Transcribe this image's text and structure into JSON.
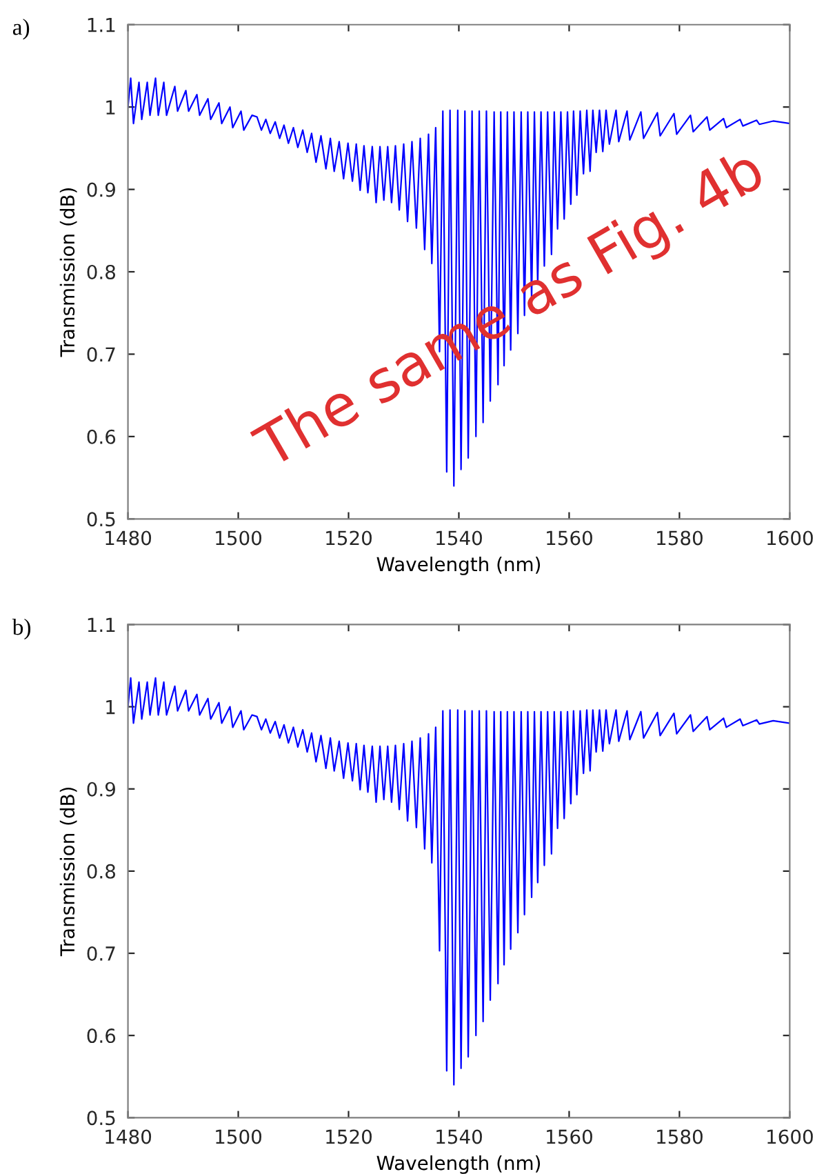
{
  "chart_data": [
    {
      "type": "line",
      "xlabel": "Wavelength (nm)",
      "ylabel": "Transmission (dB)",
      "annotations": [
        "a)",
        "The same as Fig. 4b"
      ],
      "xlim": [
        1480,
        1600
      ],
      "ylim": [
        0.5,
        1.1
      ],
      "xticks": [
        1480,
        1500,
        1520,
        1540,
        1560,
        1580,
        1600
      ],
      "yticks": [
        0.5,
        0.6,
        0.7,
        0.8,
        0.9,
        1,
        1.1
      ],
      "grid": false,
      "marker": "none",
      "line_style": "solid",
      "series": [
        {
          "color": "#0000ff",
          "x": [
            1480,
            1480.5,
            1481,
            1482,
            1482.5,
            1483.5,
            1484,
            1485,
            1485.5,
            1486.5,
            1487,
            1488.5,
            1489,
            1490.5,
            1491,
            1492.5,
            1493,
            1494.5,
            1495,
            1496.5,
            1497,
            1498.5,
            1499,
            1500.5,
            1501,
            1502.5,
            1503.4,
            1504.2,
            1505.0,
            1505.8,
            1506.7,
            1507.5,
            1508.3,
            1509.1,
            1510.0,
            1510.8,
            1511.7,
            1512.5,
            1513.3,
            1514.1,
            1515.0,
            1515.9,
            1516.7,
            1517.4,
            1518.3,
            1519.1,
            1519.9,
            1520.7,
            1521.4,
            1522.1,
            1522.8,
            1523.5,
            1524.3,
            1525.0,
            1525.7,
            1526.4,
            1527.1,
            1527.8,
            1528.5,
            1529.2,
            1530.0,
            1530.7,
            1531.5,
            1532.3,
            1533.0,
            1533.8,
            1534.5,
            1535.1,
            1535.8,
            1536.5,
            1537.1,
            1537.8,
            1538.4,
            1539.1,
            1539.8,
            1540.4,
            1541.1,
            1541.7,
            1542.4,
            1543.1,
            1543.7,
            1544.4,
            1545.0,
            1545.7,
            1546.4,
            1547.1,
            1547.6,
            1548.2,
            1548.8,
            1549.4,
            1550.0,
            1550.7,
            1551.3,
            1551.9,
            1552.5,
            1553.2,
            1553.7,
            1554.3,
            1554.9,
            1555.5,
            1556.1,
            1556.8,
            1557.3,
            1557.9,
            1558.5,
            1559.1,
            1559.7,
            1560.3,
            1560.8,
            1561.4,
            1562.0,
            1562.6,
            1563.2,
            1563.8,
            1564.3,
            1564.9,
            1565.5,
            1566.1,
            1566.7,
            1567.3,
            1568.5,
            1569.0,
            1570.5,
            1571,
            1573,
            1573.5,
            1576,
            1576.5,
            1579,
            1579.5,
            1582,
            1582.5,
            1585,
            1585.5,
            1588,
            1588.5,
            1591,
            1591.5,
            1594,
            1594.5,
            1597,
            1600
          ],
          "values": [
            1.0,
            1.035,
            0.98,
            1.03,
            0.985,
            1.03,
            0.99,
            1.035,
            0.99,
            1.03,
            0.99,
            1.025,
            0.995,
            1.02,
            0.995,
            1.015,
            0.99,
            1.01,
            0.985,
            1.005,
            0.98,
            1.0,
            0.975,
            0.995,
            0.972,
            0.99,
            0.988,
            0.972,
            0.985,
            0.968,
            0.982,
            0.962,
            0.978,
            0.956,
            0.975,
            0.951,
            0.972,
            0.945,
            0.968,
            0.933,
            0.965,
            0.925,
            0.962,
            0.922,
            0.958,
            0.913,
            0.956,
            0.91,
            0.955,
            0.899,
            0.953,
            0.896,
            0.952,
            0.884,
            0.952,
            0.887,
            0.952,
            0.884,
            0.953,
            0.875,
            0.955,
            0.861,
            0.958,
            0.853,
            0.962,
            0.827,
            0.967,
            0.81,
            0.975,
            0.703,
            0.995,
            0.557,
            0.996,
            0.54,
            0.996,
            0.56,
            0.995,
            0.574,
            0.995,
            0.6,
            0.995,
            0.617,
            0.995,
            0.643,
            0.994,
            0.663,
            0.994,
            0.686,
            0.994,
            0.705,
            0.994,
            0.725,
            0.994,
            0.747,
            0.994,
            0.768,
            0.994,
            0.786,
            0.994,
            0.807,
            0.994,
            0.821,
            0.994,
            0.852,
            0.994,
            0.864,
            0.994,
            0.882,
            0.995,
            0.893,
            0.995,
            0.919,
            0.996,
            0.922,
            0.996,
            0.945,
            0.996,
            0.946,
            0.996,
            0.955,
            0.996,
            0.958,
            0.995,
            0.96,
            0.994,
            0.962,
            0.993,
            0.965,
            0.992,
            0.967,
            0.99,
            0.97,
            0.988,
            0.972,
            0.986,
            0.975,
            0.985,
            0.977,
            0.984,
            0.979,
            0.983,
            0.98
          ]
        }
      ]
    },
    {
      "type": "line",
      "xlabel": "Wavelength (nm)",
      "ylabel": "Transmission (dB)",
      "annotations": [
        "b)"
      ],
      "xlim": [
        1480,
        1600
      ],
      "ylim": [
        0.5,
        1.1
      ],
      "xticks": [
        1480,
        1500,
        1520,
        1540,
        1560,
        1580,
        1600
      ],
      "yticks": [
        0.5,
        0.6,
        0.7,
        0.8,
        0.9,
        1,
        1.1
      ],
      "grid": false,
      "marker": "none",
      "line_style": "solid",
      "series": [
        {
          "color": "#0000ff",
          "x": [
            1480,
            1480.5,
            1481,
            1482,
            1482.5,
            1483.5,
            1484,
            1485,
            1485.5,
            1486.5,
            1487,
            1488.5,
            1489,
            1490.5,
            1491,
            1492.5,
            1493,
            1494.5,
            1495,
            1496.5,
            1497,
            1498.5,
            1499,
            1500.5,
            1501,
            1502.5,
            1503.4,
            1504.2,
            1505.0,
            1505.8,
            1506.7,
            1507.5,
            1508.3,
            1509.1,
            1510.0,
            1510.8,
            1511.7,
            1512.5,
            1513.3,
            1514.1,
            1515.0,
            1515.9,
            1516.7,
            1517.4,
            1518.3,
            1519.1,
            1519.9,
            1520.7,
            1521.4,
            1522.1,
            1522.8,
            1523.5,
            1524.3,
            1525.0,
            1525.7,
            1526.4,
            1527.1,
            1527.8,
            1528.5,
            1529.2,
            1530.0,
            1530.7,
            1531.5,
            1532.3,
            1533.0,
            1533.8,
            1534.5,
            1535.1,
            1535.8,
            1536.5,
            1537.1,
            1537.8,
            1538.4,
            1539.1,
            1539.8,
            1540.4,
            1541.1,
            1541.7,
            1542.4,
            1543.1,
            1543.7,
            1544.4,
            1545.0,
            1545.7,
            1546.4,
            1547.1,
            1547.6,
            1548.2,
            1548.8,
            1549.4,
            1550.0,
            1550.7,
            1551.3,
            1551.9,
            1552.5,
            1553.2,
            1553.7,
            1554.3,
            1554.9,
            1555.5,
            1556.1,
            1556.8,
            1557.3,
            1557.9,
            1558.5,
            1559.1,
            1559.7,
            1560.3,
            1560.8,
            1561.4,
            1562.0,
            1562.6,
            1563.2,
            1563.8,
            1564.3,
            1564.9,
            1565.5,
            1566.1,
            1566.7,
            1567.3,
            1568.5,
            1569.0,
            1570.5,
            1571,
            1573,
            1573.5,
            1576,
            1576.5,
            1579,
            1579.5,
            1582,
            1582.5,
            1585,
            1585.5,
            1588,
            1588.5,
            1591,
            1591.5,
            1594,
            1594.5,
            1597,
            1600
          ],
          "values": [
            1.0,
            1.035,
            0.98,
            1.03,
            0.985,
            1.03,
            0.99,
            1.035,
            0.99,
            1.03,
            0.99,
            1.025,
            0.995,
            1.02,
            0.995,
            1.015,
            0.99,
            1.01,
            0.985,
            1.005,
            0.98,
            1.0,
            0.975,
            0.995,
            0.972,
            0.99,
            0.988,
            0.972,
            0.985,
            0.968,
            0.982,
            0.962,
            0.978,
            0.956,
            0.975,
            0.951,
            0.972,
            0.945,
            0.968,
            0.933,
            0.965,
            0.925,
            0.962,
            0.922,
            0.958,
            0.913,
            0.956,
            0.91,
            0.955,
            0.899,
            0.953,
            0.896,
            0.952,
            0.884,
            0.952,
            0.887,
            0.952,
            0.884,
            0.953,
            0.875,
            0.955,
            0.861,
            0.958,
            0.853,
            0.962,
            0.827,
            0.967,
            0.81,
            0.975,
            0.703,
            0.995,
            0.557,
            0.996,
            0.54,
            0.996,
            0.56,
            0.995,
            0.574,
            0.995,
            0.6,
            0.995,
            0.617,
            0.995,
            0.643,
            0.994,
            0.663,
            0.994,
            0.686,
            0.994,
            0.705,
            0.994,
            0.725,
            0.994,
            0.747,
            0.994,
            0.768,
            0.994,
            0.786,
            0.994,
            0.807,
            0.994,
            0.821,
            0.994,
            0.852,
            0.994,
            0.864,
            0.994,
            0.882,
            0.995,
            0.893,
            0.995,
            0.919,
            0.996,
            0.922,
            0.996,
            0.945,
            0.996,
            0.946,
            0.996,
            0.955,
            0.996,
            0.958,
            0.995,
            0.96,
            0.994,
            0.962,
            0.993,
            0.965,
            0.992,
            0.967,
            0.99,
            0.97,
            0.988,
            0.972,
            0.986,
            0.975,
            0.985,
            0.977,
            0.984,
            0.979,
            0.983,
            0.98
          ]
        }
      ]
    }
  ]
}
